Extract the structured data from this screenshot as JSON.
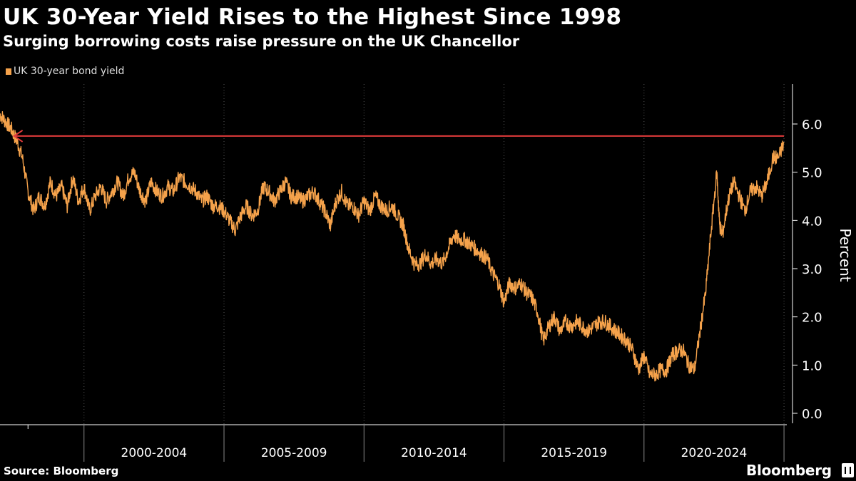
{
  "header": {
    "title": "UK 30-Year Yield Rises to the Highest Since 1998",
    "subtitle": "Surging borrowing costs raise pressure on the UK Chancellor"
  },
  "legend": {
    "label": "UK 30-year bond yield",
    "color": "#f5a24b"
  },
  "footer": {
    "source": "Source: Bloomberg",
    "brand": "Bloomberg"
  },
  "colors": {
    "line": "#f5a24b",
    "reference": "#e23b3b",
    "axis": "#ffffff",
    "grid": "#555555"
  },
  "chart_data": {
    "type": "line",
    "title": "UK 30-Year Yield Rises to the Highest Since 1998",
    "subtitle": "Surging borrowing costs raise pressure on the UK Chancellor",
    "ylabel": "Percent",
    "xlabel": "",
    "ylim": [
      0,
      6.8
    ],
    "xlim": [
      1997.0,
      2025.1
    ],
    "yticks": [
      0,
      1,
      2,
      3,
      4,
      5,
      6
    ],
    "ytick_labels": [
      "0.0",
      "1.0",
      "2.0",
      "3.0",
      "4.0",
      "5.0",
      "6.0"
    ],
    "year_boundaries": [
      1998,
      2000,
      2005,
      2010,
      2015,
      2020,
      2025
    ],
    "x_category_labels": [
      {
        "label": "2000-2004",
        "from": 2000,
        "to": 2005
      },
      {
        "label": "2005-2009",
        "from": 2005,
        "to": 2010
      },
      {
        "label": "2010-2014",
        "from": 2010,
        "to": 2015
      },
      {
        "label": "2015-2019",
        "from": 2015,
        "to": 2020
      },
      {
        "label": "2020-2024",
        "from": 2020,
        "to": 2025
      }
    ],
    "reference_line": {
      "value": 5.75,
      "from": 1997.5,
      "to": 2025.0,
      "arrow": "left"
    },
    "series": [
      {
        "name": "UK 30-year bond yield",
        "x": [
          1997.0,
          1997.2,
          1997.4,
          1997.6,
          1997.8,
          1998.0,
          1998.2,
          1998.4,
          1998.6,
          1998.8,
          1999.0,
          1999.2,
          1999.4,
          1999.6,
          1999.8,
          2000.0,
          2000.2,
          2000.4,
          2000.6,
          2000.8,
          2001.0,
          2001.2,
          2001.4,
          2001.6,
          2001.8,
          2002.0,
          2002.2,
          2002.4,
          2002.6,
          2002.8,
          2003.0,
          2003.2,
          2003.4,
          2003.6,
          2003.8,
          2004.0,
          2004.2,
          2004.4,
          2004.6,
          2004.8,
          2005.0,
          2005.2,
          2005.4,
          2005.6,
          2005.8,
          2006.0,
          2006.2,
          2006.4,
          2006.6,
          2006.8,
          2007.0,
          2007.2,
          2007.4,
          2007.6,
          2007.8,
          2008.0,
          2008.2,
          2008.4,
          2008.6,
          2008.8,
          2009.0,
          2009.2,
          2009.4,
          2009.6,
          2009.8,
          2010.0,
          2010.2,
          2010.4,
          2010.6,
          2010.8,
          2011.0,
          2011.2,
          2011.4,
          2011.6,
          2011.8,
          2012.0,
          2012.2,
          2012.4,
          2012.6,
          2012.8,
          2013.0,
          2013.2,
          2013.4,
          2013.6,
          2013.8,
          2014.0,
          2014.2,
          2014.4,
          2014.6,
          2014.8,
          2015.0,
          2015.2,
          2015.4,
          2015.6,
          2015.8,
          2016.0,
          2016.2,
          2016.4,
          2016.6,
          2016.8,
          2017.0,
          2017.2,
          2017.4,
          2017.6,
          2017.8,
          2018.0,
          2018.2,
          2018.4,
          2018.6,
          2018.8,
          2019.0,
          2019.2,
          2019.4,
          2019.6,
          2019.8,
          2020.0,
          2020.2,
          2020.4,
          2020.6,
          2020.8,
          2021.0,
          2021.2,
          2021.4,
          2021.6,
          2021.8,
          2022.0,
          2022.2,
          2022.4,
          2022.6,
          2022.7,
          2022.8,
          2023.0,
          2023.2,
          2023.4,
          2023.6,
          2023.8,
          2024.0,
          2024.2,
          2024.4,
          2024.6,
          2024.8,
          2025.0
        ],
        "values": [
          6.2,
          6.05,
          5.9,
          5.65,
          5.3,
          4.6,
          4.2,
          4.5,
          4.3,
          4.8,
          4.5,
          4.7,
          4.3,
          4.9,
          4.4,
          4.7,
          4.2,
          4.5,
          4.7,
          4.4,
          4.6,
          4.8,
          4.5,
          4.9,
          5.0,
          4.6,
          4.4,
          4.8,
          4.6,
          4.5,
          4.7,
          4.6,
          4.9,
          4.8,
          4.7,
          4.6,
          4.4,
          4.5,
          4.3,
          4.3,
          4.2,
          4.0,
          3.8,
          4.1,
          4.3,
          4.1,
          4.2,
          4.7,
          4.6,
          4.4,
          4.6,
          4.8,
          4.5,
          4.5,
          4.4,
          4.5,
          4.6,
          4.4,
          4.2,
          3.9,
          4.4,
          4.6,
          4.3,
          4.3,
          4.1,
          4.4,
          4.2,
          4.5,
          4.3,
          4.2,
          4.3,
          4.1,
          3.9,
          3.4,
          3.1,
          3.1,
          3.3,
          3.1,
          3.2,
          3.1,
          3.4,
          3.7,
          3.6,
          3.6,
          3.5,
          3.4,
          3.3,
          3.2,
          2.9,
          2.7,
          2.3,
          2.7,
          2.6,
          2.7,
          2.5,
          2.4,
          2.1,
          1.5,
          1.8,
          2.0,
          1.7,
          1.9,
          1.8,
          1.9,
          1.8,
          1.7,
          1.8,
          1.9,
          1.9,
          1.8,
          1.7,
          1.6,
          1.5,
          1.3,
          0.9,
          1.2,
          0.8,
          0.8,
          0.9,
          0.9,
          1.2,
          1.3,
          1.3,
          1.0,
          0.9,
          1.7,
          2.5,
          3.8,
          5.0,
          3.9,
          3.7,
          4.4,
          4.8,
          4.5,
          4.2,
          4.6,
          4.7,
          4.5,
          4.8,
          5.3,
          5.3,
          5.6
        ]
      }
    ]
  }
}
